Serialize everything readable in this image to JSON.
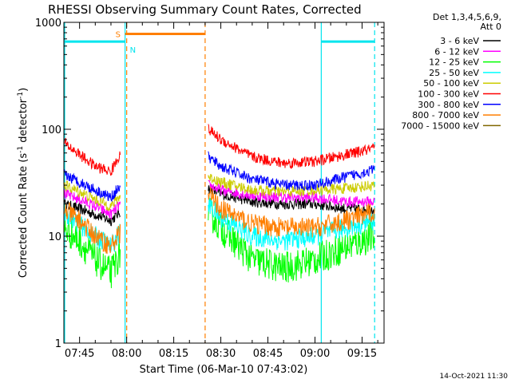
{
  "chart_data": {
    "type": "line",
    "title": "RHESSI Observing Summary Count Rates, Corrected",
    "xlabel": "Start Time (06-Mar-10 07:43:02)",
    "ylabel": "Corrected Count Rate (s⁻¹ detector⁻¹)",
    "ylabel_base": "Corrected Count Rate (s",
    "ylabel_exp1": "-1",
    "ylabel_mid": " detector",
    "ylabel_exp2": "-1",
    "ylabel_end": ")",
    "y_scale": "log",
    "ylim": [
      1,
      1000
    ],
    "xlim": [
      "07:40",
      "09:22"
    ],
    "x_ticks": [
      "07:45",
      "08:00",
      "08:15",
      "08:30",
      "08:45",
      "09:00",
      "09:15"
    ],
    "y_ticks": [
      "1",
      "10",
      "100",
      "1000"
    ],
    "legend_header": [
      "Det 1,3,4,5,6,9,",
      "Att 0"
    ],
    "legend_position": "right",
    "footer_date": "14-Oct-2021 11:30",
    "flags": {
      "saa_label": "S",
      "night_label": "N",
      "saa_color": "#ff7f00",
      "night_color": "#00e5ee",
      "saa_interval": [
        "07:59.5",
        "08:25"
      ],
      "night_intervals": [
        [
          "07:40",
          "07:59.5"
        ],
        [
          "09:02",
          "09:19"
        ]
      ]
    },
    "x_time": [
      "07:40",
      "07:45",
      "07:50",
      "07:55",
      "07:58",
      "08:00",
      "08:25",
      "08:26",
      "08:30",
      "08:40",
      "08:50",
      "09:00",
      "09:10",
      "09:19"
    ],
    "series": [
      {
        "name": "3 - 6 keV",
        "color": "#000000",
        "values": [
          20,
          18,
          16,
          14,
          17,
          null,
          null,
          28,
          25,
          21,
          20,
          20,
          18,
          18
        ]
      },
      {
        "name": "6 - 12 keV",
        "color": "#ff00ff",
        "values": [
          25,
          22,
          19,
          16,
          20,
          null,
          null,
          30,
          27,
          24,
          23,
          23,
          21,
          21
        ]
      },
      {
        "name": "12 - 25 keV",
        "color": "#00ff00",
        "values": [
          12,
          9,
          6,
          4.5,
          7,
          null,
          null,
          17,
          12,
          6,
          5,
          6,
          8,
          10
        ]
      },
      {
        "name": "25 - 50 keV",
        "color": "#00ffff",
        "values": [
          17,
          13,
          10,
          8,
          11,
          null,
          null,
          20,
          15,
          10,
          9,
          10,
          12,
          14
        ]
      },
      {
        "name": "50 - 100 keV",
        "color": "#cccc00",
        "values": [
          30,
          26,
          22,
          19,
          24,
          null,
          null,
          36,
          32,
          27,
          26,
          27,
          28,
          30
        ]
      },
      {
        "name": "100 - 300 keV",
        "color": "#ff0000",
        "values": [
          75,
          58,
          45,
          40,
          60,
          null,
          null,
          100,
          80,
          55,
          48,
          50,
          58,
          66
        ]
      },
      {
        "name": "300 - 800 keV",
        "color": "#0000ff",
        "values": [
          38,
          32,
          27,
          23,
          30,
          null,
          null,
          55,
          45,
          34,
          30,
          30,
          36,
          42
        ]
      },
      {
        "name": "800 - 7000 keV",
        "color": "#ff7f00",
        "values": [
          18,
          14,
          10,
          8,
          11,
          null,
          null,
          25,
          18,
          13,
          12,
          12,
          14,
          17
        ]
      },
      {
        "name": "7000 - 15000 keV",
        "color": "#806600",
        "values": []
      }
    ]
  }
}
